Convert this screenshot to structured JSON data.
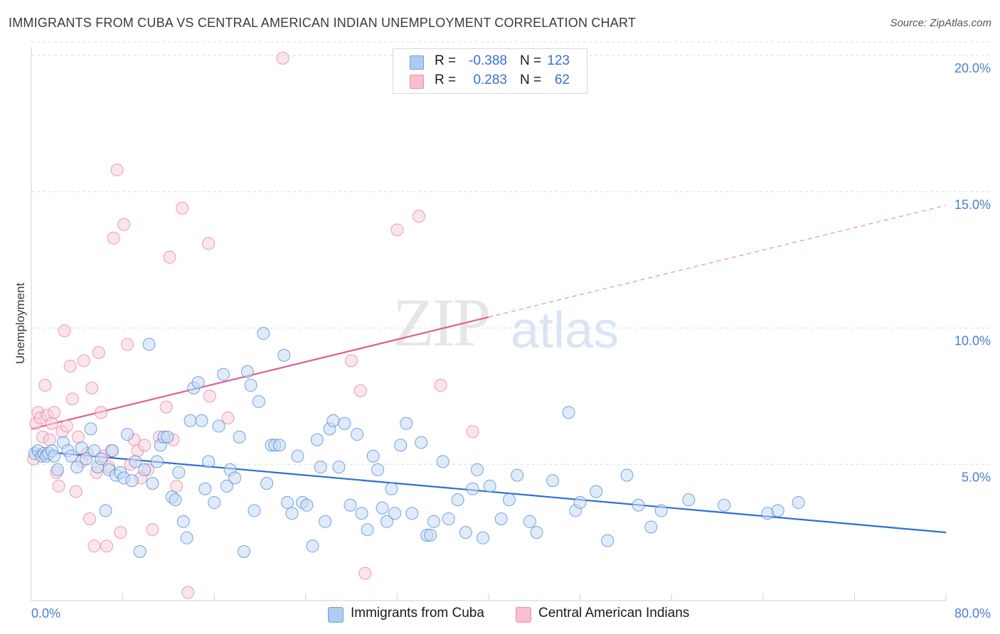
{
  "header": {
    "title": "IMMIGRANTS FROM CUBA VS CENTRAL AMERICAN INDIAN UNEMPLOYMENT CORRELATION CHART",
    "source": "Source: ZipAtlas.com"
  },
  "watermark": {
    "zip": "ZIP",
    "atlas": "atlas"
  },
  "stats": [
    {
      "r_label": "R =",
      "r_value": "-0.388",
      "n_label": "N =",
      "n_value": "123",
      "color": "#aecbf0"
    },
    {
      "r_label": "R =",
      "r_value": "0.283",
      "n_label": "N =",
      "n_value": "62",
      "color": "#f7bfd0"
    }
  ],
  "legend": [
    {
      "label": "Immigrants from Cuba",
      "color": "#aecbf0"
    },
    {
      "label": "Central American Indians",
      "color": "#f7bfd0"
    }
  ],
  "chart_data": {
    "type": "scatter",
    "ylabel": "Unemployment",
    "xlim": [
      0,
      80
    ],
    "ylim": [
      0,
      20.5
    ],
    "x_ticks": [
      "0.0%",
      "80.0%"
    ],
    "y_ticks": [
      {
        "value": 5,
        "label": "5.0%"
      },
      {
        "value": 10,
        "label": "10.0%"
      },
      {
        "value": 15,
        "label": "15.0%"
      },
      {
        "value": 20,
        "label": "20.0%"
      }
    ],
    "colors": {
      "blue": "#4a86d4",
      "blue_fill": "#c6daf4",
      "pink": "#e8799d",
      "pink_fill": "#f8d0dd",
      "blue_line": "#2e6fd0",
      "pink_line": "#e0608a"
    },
    "series": [
      {
        "name": "Immigrants from Cuba",
        "trend": {
          "x0": 0,
          "y0": 5.5,
          "x1": 80,
          "y1": 2.5
        },
        "points": [
          [
            0.3,
            5.4
          ],
          [
            0.6,
            5.5
          ],
          [
            0.9,
            5.3
          ],
          [
            1.1,
            5.4
          ],
          [
            1.3,
            5.3
          ],
          [
            1.5,
            5.4
          ],
          [
            1.8,
            5.5
          ],
          [
            2.0,
            5.3
          ],
          [
            2.3,
            4.8
          ],
          [
            2.8,
            5.8
          ],
          [
            3.2,
            5.5
          ],
          [
            3.5,
            5.3
          ],
          [
            4.0,
            4.9
          ],
          [
            4.4,
            5.6
          ],
          [
            4.8,
            5.2
          ],
          [
            5.2,
            6.3
          ],
          [
            5.5,
            5.5
          ],
          [
            5.8,
            4.9
          ],
          [
            6.1,
            5.2
          ],
          [
            6.5,
            3.3
          ],
          [
            6.8,
            4.8
          ],
          [
            7.1,
            5.5
          ],
          [
            7.4,
            4.6
          ],
          [
            7.8,
            4.7
          ],
          [
            8.1,
            4.5
          ],
          [
            8.4,
            6.1
          ],
          [
            8.8,
            4.4
          ],
          [
            9.1,
            5.1
          ],
          [
            9.5,
            1.8
          ],
          [
            9.9,
            4.8
          ],
          [
            10.3,
            9.4
          ],
          [
            10.6,
            4.3
          ],
          [
            11.0,
            5.1
          ],
          [
            11.3,
            5.7
          ],
          [
            11.6,
            6.0
          ],
          [
            11.9,
            6.0
          ],
          [
            12.3,
            3.8
          ],
          [
            12.6,
            3.7
          ],
          [
            12.9,
            4.7
          ],
          [
            13.3,
            2.9
          ],
          [
            13.6,
            2.3
          ],
          [
            13.9,
            6.6
          ],
          [
            14.2,
            7.8
          ],
          [
            14.6,
            8.0
          ],
          [
            14.9,
            6.6
          ],
          [
            15.2,
            4.1
          ],
          [
            15.5,
            5.1
          ],
          [
            16.0,
            3.6
          ],
          [
            16.4,
            6.4
          ],
          [
            16.8,
            8.3
          ],
          [
            17.1,
            4.2
          ],
          [
            17.4,
            4.8
          ],
          [
            17.8,
            4.5
          ],
          [
            18.2,
            6.0
          ],
          [
            18.6,
            1.8
          ],
          [
            18.9,
            8.4
          ],
          [
            19.2,
            7.9
          ],
          [
            19.5,
            3.3
          ],
          [
            19.9,
            7.3
          ],
          [
            20.3,
            9.8
          ],
          [
            20.6,
            4.3
          ],
          [
            21.0,
            5.7
          ],
          [
            21.3,
            5.7
          ],
          [
            21.7,
            5.7
          ],
          [
            22.1,
            9.0
          ],
          [
            22.4,
            3.6
          ],
          [
            22.8,
            3.2
          ],
          [
            23.3,
            5.3
          ],
          [
            23.7,
            3.6
          ],
          [
            24.1,
            3.5
          ],
          [
            24.6,
            2.0
          ],
          [
            25.0,
            5.9
          ],
          [
            25.3,
            4.9
          ],
          [
            25.7,
            2.9
          ],
          [
            26.1,
            6.3
          ],
          [
            26.4,
            6.6
          ],
          [
            26.9,
            4.9
          ],
          [
            27.4,
            6.5
          ],
          [
            27.9,
            3.5
          ],
          [
            28.5,
            6.1
          ],
          [
            28.9,
            3.2
          ],
          [
            29.4,
            2.6
          ],
          [
            29.9,
            5.3
          ],
          [
            30.3,
            4.8
          ],
          [
            30.7,
            3.4
          ],
          [
            31.1,
            2.9
          ],
          [
            31.5,
            4.1
          ],
          [
            31.8,
            3.2
          ],
          [
            32.3,
            5.7
          ],
          [
            32.8,
            6.5
          ],
          [
            33.3,
            3.2
          ],
          [
            34.1,
            5.8
          ],
          [
            34.6,
            2.4
          ],
          [
            34.9,
            2.4
          ],
          [
            35.2,
            2.9
          ],
          [
            36.0,
            5.1
          ],
          [
            36.5,
            3.0
          ],
          [
            37.3,
            3.7
          ],
          [
            38.0,
            2.5
          ],
          [
            38.6,
            4.1
          ],
          [
            39.0,
            4.8
          ],
          [
            39.5,
            2.3
          ],
          [
            40.1,
            4.2
          ],
          [
            41.1,
            3.0
          ],
          [
            41.8,
            3.7
          ],
          [
            42.5,
            4.6
          ],
          [
            43.6,
            2.9
          ],
          [
            44.2,
            2.5
          ],
          [
            45.6,
            4.4
          ],
          [
            47.0,
            6.9
          ],
          [
            47.6,
            3.3
          ],
          [
            48.0,
            3.6
          ],
          [
            49.4,
            4.0
          ],
          [
            50.4,
            2.2
          ],
          [
            52.1,
            4.6
          ],
          [
            53.1,
            3.5
          ],
          [
            54.2,
            2.7
          ],
          [
            55.1,
            3.3
          ],
          [
            57.5,
            3.7
          ],
          [
            60.6,
            3.5
          ],
          [
            64.4,
            3.2
          ],
          [
            65.3,
            3.3
          ],
          [
            67.1,
            3.6
          ]
        ]
      },
      {
        "name": "Central American Indians",
        "trend": {
          "x0": 0,
          "y0": 6.3,
          "x1": 40,
          "y1": 10.4,
          "dash_to_x": 80,
          "dash_to_y": 14.5
        },
        "points": [
          [
            0.2,
            5.2
          ],
          [
            0.4,
            6.5
          ],
          [
            0.6,
            6.9
          ],
          [
            0.8,
            6.7
          ],
          [
            1.0,
            6.0
          ],
          [
            1.2,
            7.9
          ],
          [
            1.4,
            6.8
          ],
          [
            1.6,
            5.9
          ],
          [
            1.8,
            6.5
          ],
          [
            2.0,
            6.9
          ],
          [
            2.2,
            4.7
          ],
          [
            2.4,
            4.2
          ],
          [
            2.7,
            6.2
          ],
          [
            2.9,
            9.9
          ],
          [
            3.1,
            6.4
          ],
          [
            3.4,
            8.6
          ],
          [
            3.6,
            7.4
          ],
          [
            3.9,
            4.0
          ],
          [
            4.1,
            6.0
          ],
          [
            4.4,
            5.1
          ],
          [
            4.6,
            8.8
          ],
          [
            4.9,
            5.4
          ],
          [
            5.1,
            3.0
          ],
          [
            5.3,
            7.8
          ],
          [
            5.5,
            2.0
          ],
          [
            5.7,
            4.7
          ],
          [
            5.9,
            9.1
          ],
          [
            6.1,
            6.9
          ],
          [
            6.3,
            5.3
          ],
          [
            6.6,
            2.0
          ],
          [
            6.8,
            4.9
          ],
          [
            7.0,
            5.5
          ],
          [
            7.2,
            13.3
          ],
          [
            7.5,
            15.8
          ],
          [
            7.8,
            2.5
          ],
          [
            8.1,
            13.8
          ],
          [
            8.4,
            9.4
          ],
          [
            8.7,
            5.0
          ],
          [
            9.0,
            5.9
          ],
          [
            9.3,
            5.5
          ],
          [
            9.6,
            4.5
          ],
          [
            9.9,
            5.7
          ],
          [
            10.2,
            4.8
          ],
          [
            10.6,
            2.6
          ],
          [
            11.2,
            6.0
          ],
          [
            11.8,
            7.1
          ],
          [
            12.1,
            12.6
          ],
          [
            12.4,
            5.9
          ],
          [
            12.7,
            4.2
          ],
          [
            13.2,
            14.4
          ],
          [
            13.7,
            0.3
          ],
          [
            15.5,
            13.1
          ],
          [
            15.6,
            7.5
          ],
          [
            17.2,
            6.7
          ],
          [
            22.0,
            19.9
          ],
          [
            28.0,
            8.8
          ],
          [
            28.8,
            7.7
          ],
          [
            29.2,
            1.0
          ],
          [
            32.0,
            13.6
          ],
          [
            33.9,
            14.1
          ],
          [
            35.8,
            7.9
          ],
          [
            38.6,
            6.2
          ]
        ]
      }
    ]
  }
}
